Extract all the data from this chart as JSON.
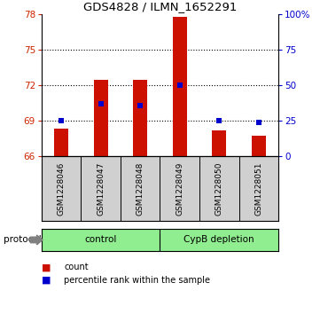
{
  "title": "GDS4828 / ILMN_1652291",
  "samples": [
    "GSM1228046",
    "GSM1228047",
    "GSM1228048",
    "GSM1228049",
    "GSM1228050",
    "GSM1228051"
  ],
  "counts": [
    68.3,
    72.5,
    72.5,
    77.8,
    68.2,
    67.7
  ],
  "percentile_ranks": [
    25,
    37,
    36,
    50,
    25,
    24
  ],
  "ylim_left": [
    66,
    78
  ],
  "ylim_right": [
    0,
    100
  ],
  "yticks_left": [
    66,
    69,
    72,
    75,
    78
  ],
  "yticks_right": [
    0,
    25,
    50,
    75,
    100
  ],
  "ytick_right_labels": [
    "0",
    "25",
    "50",
    "75",
    "100%"
  ],
  "control_samples": [
    0,
    1,
    2
  ],
  "cypb_samples": [
    3,
    4,
    5
  ],
  "group_color": "#90ee90",
  "bar_color": "#cc1100",
  "dot_color": "#0000cc",
  "bar_width": 0.35,
  "bg_color": "#ffffff",
  "label_bg": "#d0d0d0",
  "label_count": "count",
  "label_percentile": "percentile rank within the sample",
  "protocol_label": "protocol",
  "left_axis_color": "#cc2200",
  "right_axis_color": "#0000cc",
  "grid_yticks": [
    69,
    72,
    75
  ]
}
